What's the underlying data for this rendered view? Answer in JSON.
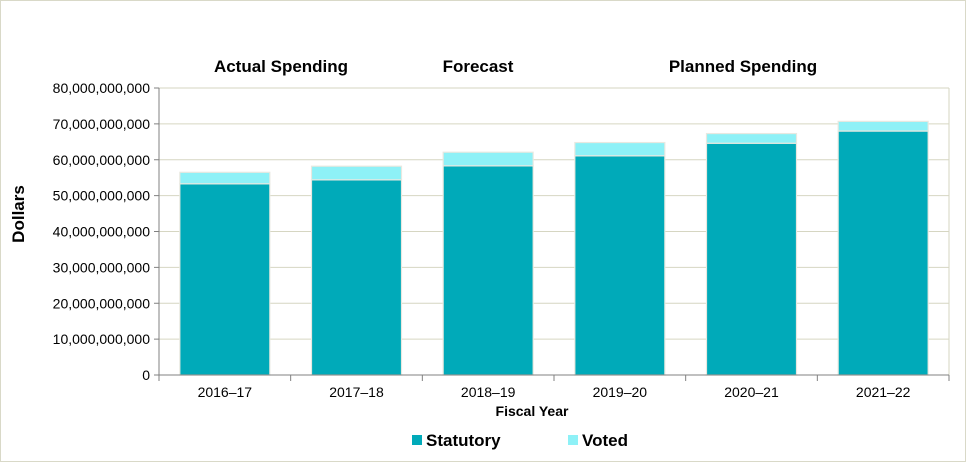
{
  "chart_data": {
    "type": "bar",
    "stacked": true,
    "categories": [
      "2016–17",
      "2017–18",
      "2018–19",
      "2019–20",
      "2020–21",
      "2021–22"
    ],
    "series": [
      {
        "name": "Statutory",
        "color": "#00aab9",
        "values": [
          53300000000,
          54400000000,
          58300000000,
          61100000000,
          64600000000,
          68000000000
        ]
      },
      {
        "name": "Voted",
        "color": "#8ef1f7",
        "values": [
          3200000000,
          3800000000,
          3800000000,
          3700000000,
          2700000000,
          2700000000
        ]
      }
    ],
    "section_labels": [
      "Actual Spending",
      "Forecast",
      "Planned Spending"
    ],
    "xlabel": "Fiscal Year",
    "ylabel": "Dollars",
    "ylim": [
      0,
      80000000000
    ],
    "yticks": [
      0,
      10000000000,
      20000000000,
      30000000000,
      40000000000,
      50000000000,
      60000000000,
      70000000000,
      80000000000
    ],
    "ytick_labels": [
      "0",
      "10,000,000,000",
      "20,000,000,000",
      "30,000,000,000",
      "40,000,000,000",
      "50,000,000,000",
      "60,000,000,000",
      "70,000,000,000",
      "80,000,000,000"
    ],
    "grid": true,
    "legend_position": "bottom",
    "gridline_color": "#d6d6c2",
    "axis_color": "#808080"
  }
}
